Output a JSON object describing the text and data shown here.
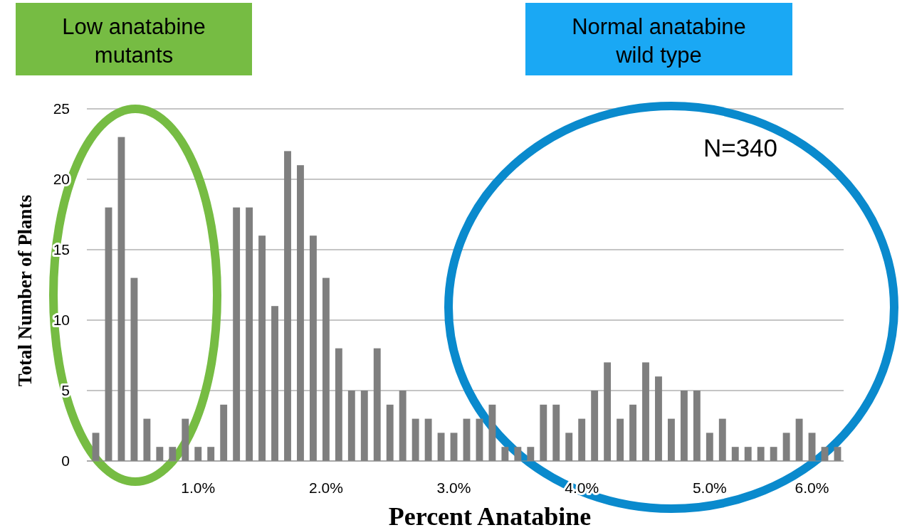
{
  "chart_data": {
    "type": "bar",
    "xlabel": "Percent Anatabine",
    "ylabel": "Total Number of Plants",
    "categories": [
      null,
      null,
      null,
      null,
      null,
      null,
      null,
      null,
      "1.0%",
      null,
      null,
      null,
      null,
      null,
      null,
      null,
      null,
      null,
      "2.0%",
      null,
      null,
      null,
      null,
      null,
      null,
      null,
      null,
      null,
      "3.0%",
      null,
      null,
      null,
      null,
      null,
      null,
      null,
      null,
      null,
      "4.0%",
      null,
      null,
      null,
      null,
      null,
      null,
      null,
      null,
      null,
      "5.0%",
      null,
      null,
      null,
      null,
      null,
      null,
      null,
      "6.0%",
      null,
      null
    ],
    "values": [
      2,
      18,
      23,
      13,
      3,
      1,
      1,
      3,
      1,
      1,
      4,
      18,
      18,
      16,
      11,
      22,
      21,
      16,
      13,
      8,
      5,
      5,
      8,
      4,
      5,
      3,
      3,
      2,
      2,
      3,
      3,
      4,
      1,
      1,
      1,
      4,
      4,
      2,
      3,
      5,
      7,
      3,
      4,
      7,
      6,
      3,
      5,
      5,
      2,
      3,
      1,
      1,
      1,
      1,
      2,
      3,
      2,
      1,
      1
    ],
    "color": "#7f7f7f",
    "ylim": [
      0,
      25
    ],
    "yticks": [
      0,
      5,
      10,
      15,
      20,
      25
    ],
    "grid": "y",
    "annotations": [
      "Low anatabine mutants",
      "Normal anatabine wild type",
      "N=340"
    ]
  }
}
